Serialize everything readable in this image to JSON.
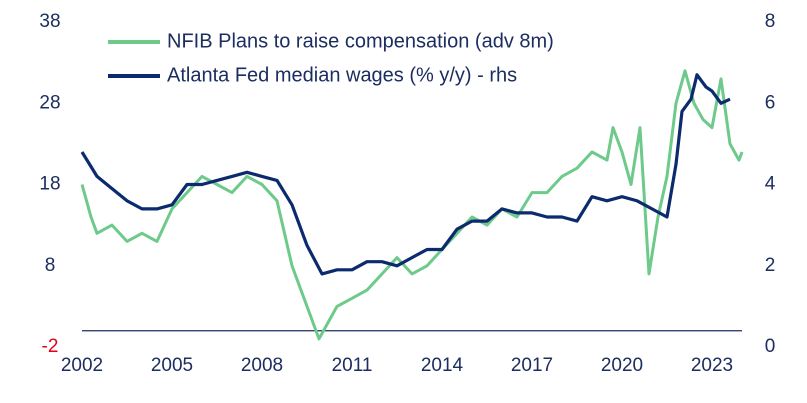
{
  "chart_data": {
    "type": "line",
    "xlim": [
      2002,
      2024
    ],
    "xticks": [
      2002,
      2005,
      2008,
      2011,
      2014,
      2017,
      2020,
      2023
    ],
    "ylim": [
      -2,
      38
    ],
    "yticks": [
      -2,
      8,
      18,
      28,
      38
    ],
    "y2lim": [
      0,
      8
    ],
    "y2ticks": [
      0,
      2,
      4,
      6,
      8
    ],
    "negative_tick_color": "#e3001b",
    "legend": "top-left",
    "series": [
      {
        "name": "NFIB Plans to raise compensation (adv 8m)",
        "color": "#6dca8a",
        "axis": "y",
        "x": [
          2002,
          2002.3,
          2002.5,
          2003,
          2003.5,
          2004,
          2004.5,
          2005,
          2005.5,
          2006,
          2006.5,
          2007,
          2007.5,
          2008,
          2008.5,
          2009,
          2009.5,
          2009.9,
          2010.5,
          2011,
          2011.5,
          2012,
          2012.5,
          2013,
          2013.5,
          2014,
          2014.5,
          2015,
          2015.5,
          2016,
          2016.5,
          2017,
          2017.5,
          2018,
          2018.5,
          2019,
          2019.5,
          2019.7,
          2020,
          2020.3,
          2020.6,
          2020.9,
          2021.2,
          2021.5,
          2021.8,
          2022.1,
          2022.4,
          2022.7,
          2023,
          2023.3,
          2023.6,
          2023.9,
          2024
        ],
        "values": [
          18,
          14,
          12,
          13,
          11,
          12,
          11,
          15,
          17,
          19,
          18,
          17,
          19,
          18,
          16,
          8,
          3,
          -1,
          3,
          4,
          5,
          7,
          9,
          7,
          8,
          10,
          12,
          14,
          13,
          15,
          14,
          17,
          17,
          19,
          20,
          22,
          21,
          25,
          22,
          18,
          25,
          7,
          14,
          19,
          28,
          32,
          28,
          26,
          25,
          31,
          23,
          21,
          22
        ]
      },
      {
        "name": "Atlanta Fed median wages (% y/y) - rhs",
        "color": "#0c2a6e",
        "axis": "y2",
        "x": [
          2002,
          2002.5,
          2003,
          2003.5,
          2004,
          2004.5,
          2005,
          2005.5,
          2006,
          2006.5,
          2007,
          2007.5,
          2008,
          2008.5,
          2009,
          2009.5,
          2010,
          2010.5,
          2011,
          2011.5,
          2012,
          2012.5,
          2013,
          2013.5,
          2014,
          2014.5,
          2015,
          2015.5,
          2016,
          2016.5,
          2017,
          2017.5,
          2018,
          2018.5,
          2019,
          2019.5,
          2020,
          2020.5,
          2021,
          2021.5,
          2021.8,
          2022,
          2022.3,
          2022.5,
          2022.8,
          2023,
          2023.3,
          2023.6
        ],
        "values": [
          4.8,
          4.2,
          3.9,
          3.6,
          3.4,
          3.4,
          3.5,
          4.0,
          4.0,
          4.1,
          4.2,
          4.3,
          4.2,
          4.1,
          3.5,
          2.5,
          1.8,
          1.9,
          1.9,
          2.1,
          2.1,
          2.0,
          2.2,
          2.4,
          2.4,
          2.9,
          3.1,
          3.1,
          3.4,
          3.3,
          3.3,
          3.2,
          3.2,
          3.1,
          3.7,
          3.6,
          3.7,
          3.6,
          3.4,
          3.2,
          4.5,
          5.8,
          6.1,
          6.7,
          6.4,
          6.3,
          6.0,
          6.1
        ]
      }
    ]
  }
}
